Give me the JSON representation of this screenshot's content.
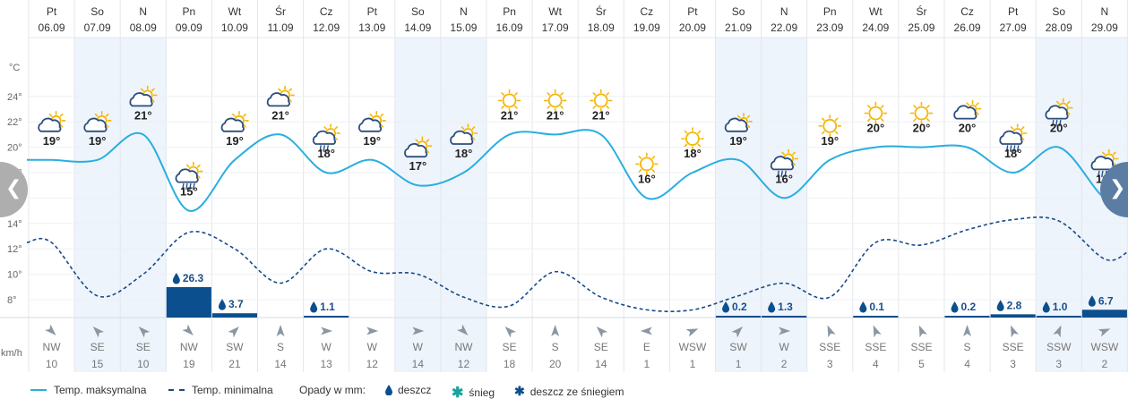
{
  "units": {
    "temperature": "°C",
    "wind": "km/h"
  },
  "y_axis_ticks": [
    "24°",
    "22°",
    "20°",
    "18°",
    "16°",
    "14°",
    "12°",
    "10°",
    "8°"
  ],
  "nav": {
    "prev_icon": "chevron-left-icon",
    "next_icon": "chevron-right-icon"
  },
  "colors": {
    "max_temp_line": "#29aee0",
    "min_temp_line": "#174a8a",
    "precip_bar": "#0b4f8e",
    "weekend_band": "#eef4fb",
    "sun": "#f5b70a",
    "cloud": "#2b4f7e"
  },
  "legend": {
    "max_label": "Temp. maksymalna",
    "min_label": "Temp. minimalna",
    "precip_title": "Opady w mm:",
    "rain_label": "deszcz",
    "snow_label": "śnieg",
    "mix_label": "deszcz ze śniegiem"
  },
  "chart_data": {
    "type": "line",
    "y_unit": "°C",
    "ylim": [
      6,
      26
    ],
    "categories": [
      {
        "day": "Pt",
        "date": "06.09"
      },
      {
        "day": "So",
        "date": "07.09"
      },
      {
        "day": "N",
        "date": "08.09"
      },
      {
        "day": "Pn",
        "date": "09.09"
      },
      {
        "day": "Wt",
        "date": "10.09"
      },
      {
        "day": "Śr",
        "date": "11.09"
      },
      {
        "day": "Cz",
        "date": "12.09"
      },
      {
        "day": "Pt",
        "date": "13.09"
      },
      {
        "day": "So",
        "date": "14.09"
      },
      {
        "day": "N",
        "date": "15.09"
      },
      {
        "day": "Pn",
        "date": "16.09"
      },
      {
        "day": "Wt",
        "date": "17.09"
      },
      {
        "day": "Śr",
        "date": "18.09"
      },
      {
        "day": "Cz",
        "date": "19.09"
      },
      {
        "day": "Pt",
        "date": "20.09"
      },
      {
        "day": "So",
        "date": "21.09"
      },
      {
        "day": "N",
        "date": "22.09"
      },
      {
        "day": "Pn",
        "date": "23.09"
      },
      {
        "day": "Wt",
        "date": "24.09"
      },
      {
        "day": "Śr",
        "date": "25.09"
      },
      {
        "day": "Cz",
        "date": "26.09"
      },
      {
        "day": "Pt",
        "date": "27.09"
      },
      {
        "day": "So",
        "date": "28.09"
      },
      {
        "day": "N",
        "date": "29.09"
      }
    ],
    "weekend_flags": [
      false,
      true,
      true,
      false,
      false,
      false,
      false,
      false,
      true,
      true,
      false,
      false,
      false,
      false,
      false,
      true,
      true,
      false,
      false,
      false,
      false,
      false,
      true,
      true
    ],
    "max_temp": [
      19,
      19,
      21,
      15,
      19,
      21,
      18,
      19,
      17,
      18,
      21,
      21,
      21,
      16,
      18,
      19,
      16,
      19,
      20,
      20,
      20,
      18,
      20,
      16
    ],
    "min_temp": [
      12.5,
      8.3,
      10,
      13.3,
      12,
      9.3,
      12,
      10.2,
      10,
      8.2,
      7.5,
      10.2,
      8.2,
      7.2,
      7.2,
      8.3,
      9.3,
      8.2,
      12.5,
      12.3,
      13.5,
      14.3,
      14.2,
      11.2
    ],
    "weather_icons": [
      "partly-cloudy",
      "partly-cloudy",
      "partly-cloudy",
      "rain-shower",
      "partly-cloudy",
      "partly-cloudy",
      "drizzle",
      "partly-cloudy",
      "partly-cloudy",
      "partly-cloudy",
      "sunny",
      "sunny",
      "sunny",
      "sunny",
      "sunny",
      "cloudy",
      "drizzle",
      "sunny",
      "sunny",
      "sunny",
      "cloudy",
      "rain-shower",
      "drizzle",
      "rain-shower"
    ],
    "precip": [
      null,
      null,
      null,
      26.3,
      3.7,
      null,
      1.1,
      null,
      null,
      null,
      null,
      null,
      null,
      null,
      null,
      0.2,
      1.3,
      null,
      0.1,
      null,
      0.2,
      2.8,
      1.0,
      6.7
    ],
    "wind_dir": [
      "NW",
      "SE",
      "SE",
      "NW",
      "SW",
      "S",
      "W",
      "W",
      "W",
      "NW",
      "SE",
      "S",
      "SE",
      "E",
      "WSW",
      "SW",
      "W",
      "SSE",
      "SSE",
      "SSE",
      "S",
      "SSE",
      "SSW",
      "WSW"
    ],
    "wind_speed": [
      10,
      15,
      10,
      19,
      21,
      14,
      13,
      12,
      14,
      12,
      18,
      20,
      14,
      1,
      1,
      1,
      2,
      3,
      4,
      5,
      4,
      3,
      3,
      2
    ]
  }
}
